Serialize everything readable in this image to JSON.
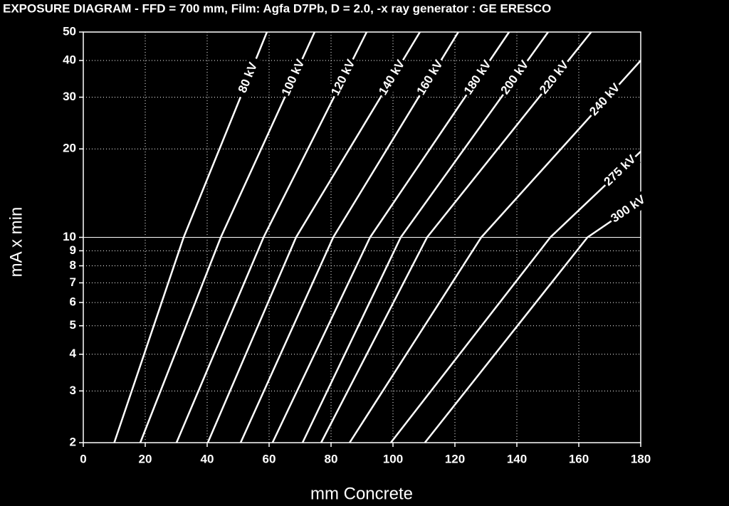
{
  "chart_data": {
    "type": "line",
    "title": "EXPOSURE DIAGRAM - FFD = 700 mm, Film: Agfa D7Pb, D = 2.0, -x ray generator : GE ERESCO",
    "x_label": "mm Concrete",
    "y_label": "mA x min",
    "xlim": [
      0,
      180
    ],
    "xticks": [
      0,
      20,
      40,
      60,
      80,
      100,
      120,
      140,
      160,
      180
    ],
    "ylim": [
      2,
      50
    ],
    "yticks": [
      2,
      3,
      4,
      5,
      6,
      7,
      8,
      9,
      10,
      20,
      30,
      40,
      50
    ],
    "log_y": true,
    "grid": true,
    "series": [
      {
        "name": "80 kV",
        "color": "#ffffff",
        "x": [
          10,
          32.4,
          59.3
        ],
        "values": [
          2,
          10,
          50
        ]
      },
      {
        "name": "100 kV",
        "color": "#ffffff",
        "x": [
          18.4,
          44.4,
          74.7
        ],
        "values": [
          2,
          10,
          50
        ]
      },
      {
        "name": "120 kV",
        "color": "#ffffff",
        "x": [
          30.1,
          58.2,
          91.5
        ],
        "values": [
          2,
          10,
          50
        ]
      },
      {
        "name": "140 kV",
        "color": "#ffffff",
        "x": [
          40.2,
          68.7,
          108.7
        ],
        "values": [
          2,
          10,
          50
        ]
      },
      {
        "name": "160 kV",
        "color": "#ffffff",
        "x": [
          50.8,
          80.7,
          121.1
        ],
        "values": [
          2,
          10,
          50
        ]
      },
      {
        "name": "180 kV",
        "color": "#ffffff",
        "x": [
          61.1,
          92.6,
          137.5
        ],
        "values": [
          2,
          10,
          50
        ]
      },
      {
        "name": "200 kV",
        "color": "#ffffff",
        "x": [
          70.8,
          102.5,
          150.1
        ],
        "values": [
          2,
          10,
          50
        ]
      },
      {
        "name": "220 kV",
        "color": "#ffffff",
        "x": [
          76.8,
          111,
          164
        ],
        "values": [
          2,
          10,
          50
        ]
      },
      {
        "name": "240 kV",
        "color": "#ffffff",
        "x": [
          86,
          128.5,
          180
        ],
        "values": [
          2,
          10,
          40
        ]
      },
      {
        "name": "275 kV",
        "color": "#ffffff",
        "x": [
          99.3,
          150.8,
          180
        ],
        "values": [
          2,
          10,
          19.6
        ]
      },
      {
        "name": "300 kV",
        "color": "#ffffff",
        "x": [
          110.3,
          162.8,
          180
        ],
        "values": [
          2,
          10,
          13.3
        ]
      }
    ]
  }
}
